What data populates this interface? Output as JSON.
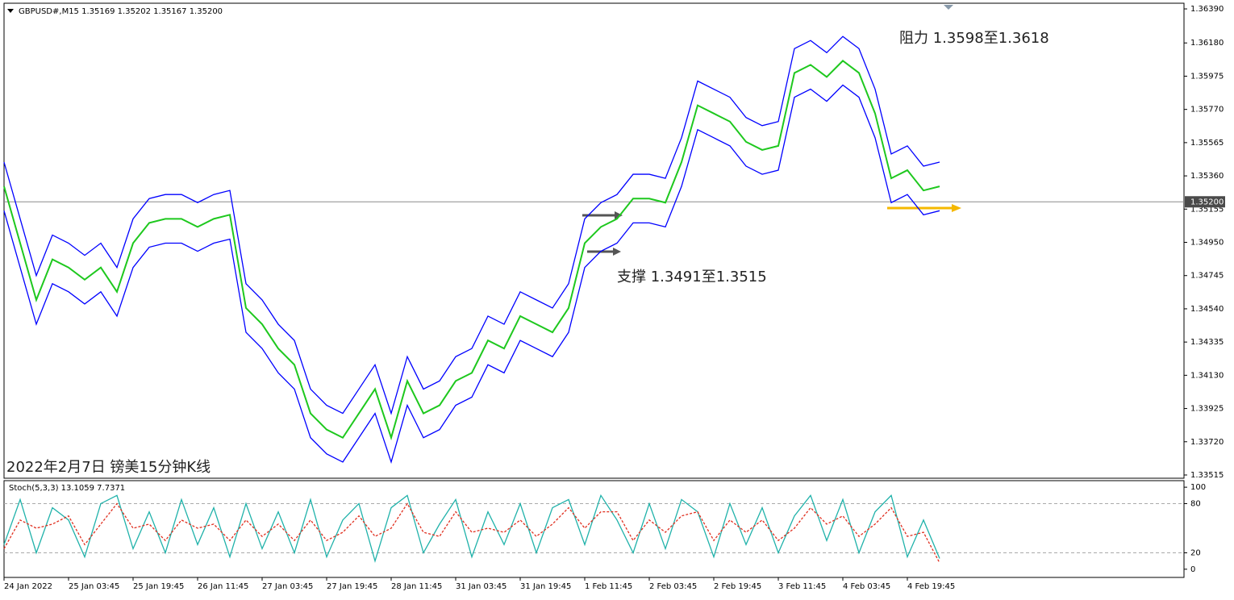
{
  "chart_data": [
    {
      "type": "line",
      "title": "GBPUSD#,M15  1.35169 1.35202 1.35167 1.35200",
      "annotations": [
        "阻力 1.3598至1.3618",
        "支撑 1.3491至1.3515",
        "2022年2月7日 镑美15分钟K线"
      ],
      "current_price": {
        "value": 1.352,
        "label": "1.35200"
      },
      "categories": [
        "24 Jan 2022",
        null,
        null,
        null,
        "25 Jan 03:45",
        null,
        null,
        null,
        "25 Jan 19:45",
        null,
        null,
        null,
        "26 Jan 11:45",
        null,
        null,
        null,
        "27 Jan 03:45",
        null,
        null,
        null,
        "27 Jan 19:45",
        null,
        null,
        null,
        "28 Jan 11:45",
        null,
        null,
        null,
        "31 Jan 03:45",
        null,
        null,
        null,
        "31 Jan 19:45",
        null,
        null,
        null,
        "1 Feb 11:45",
        null,
        null,
        null,
        "2 Feb 03:45",
        null,
        null,
        null,
        "2 Feb 19:45",
        null,
        null,
        null,
        "3 Feb 11:45",
        null,
        null,
        null,
        "4 Feb 03:45",
        null,
        null,
        null,
        "4 Feb 19:45",
        null,
        null
      ],
      "series": [
        {
          "color": "#1ec81e",
          "values": [
            1.35295,
            1.34945,
            1.34595,
            1.34845,
            1.34795,
            1.3472,
            1.34795,
            1.34645,
            1.34945,
            1.3507,
            1.35095,
            1.35095,
            1.35045,
            1.35095,
            1.3512,
            1.34545,
            1.34445,
            1.34295,
            1.34195,
            1.33895,
            1.33795,
            1.33745,
            1.33895,
            1.34045,
            1.33745,
            1.34095,
            1.33895,
            1.33945,
            1.34095,
            1.34145,
            1.34345,
            1.34295,
            1.34495,
            1.34445,
            1.34395,
            1.34545,
            1.34945,
            1.35045,
            1.35095,
            1.3522,
            1.3522,
            1.35195,
            1.35445,
            1.35795,
            1.35745,
            1.35695,
            1.3557,
            1.3552,
            1.35545,
            1.35995,
            1.36045,
            1.3597,
            1.3607,
            1.35995,
            1.35745,
            1.35345,
            1.35395,
            1.3527,
            1.35295
          ]
        },
        {
          "color": "#0000ff",
          "values": [
            1.35445,
            1.35095,
            1.34745,
            1.34995,
            1.34945,
            1.3487,
            1.34945,
            1.34795,
            1.35095,
            1.3522,
            1.35245,
            1.35245,
            1.35195,
            1.35245,
            1.3527,
            1.34695,
            1.34595,
            1.34445,
            1.34345,
            1.34045,
            1.33945,
            1.33895,
            1.34045,
            1.34195,
            1.33895,
            1.34245,
            1.34045,
            1.34095,
            1.34245,
            1.34295,
            1.34495,
            1.34445,
            1.34645,
            1.34595,
            1.34545,
            1.34695,
            1.35095,
            1.35195,
            1.35245,
            1.3537,
            1.3537,
            1.35345,
            1.35595,
            1.35945,
            1.35895,
            1.35845,
            1.3572,
            1.3567,
            1.35695,
            1.36145,
            1.36195,
            1.3612,
            1.3622,
            1.36145,
            1.35895,
            1.35495,
            1.35545,
            1.3542,
            1.35445
          ]
        },
        {
          "color": "#0000ff",
          "values": [
            1.35145,
            1.34795,
            1.34445,
            1.34695,
            1.34645,
            1.3457,
            1.34645,
            1.34495,
            1.34795,
            1.3492,
            1.34945,
            1.34945,
            1.34895,
            1.34945,
            1.3497,
            1.34395,
            1.34295,
            1.34145,
            1.34045,
            1.33745,
            1.33645,
            1.33595,
            1.33745,
            1.33895,
            1.33595,
            1.33945,
            1.33745,
            1.33795,
            1.33945,
            1.33995,
            1.34195,
            1.34145,
            1.34345,
            1.34295,
            1.34245,
            1.34395,
            1.34795,
            1.34895,
            1.34945,
            1.3507,
            1.3507,
            1.35045,
            1.35295,
            1.35645,
            1.35595,
            1.35545,
            1.3542,
            1.3537,
            1.35395,
            1.35845,
            1.35895,
            1.3582,
            1.3592,
            1.35845,
            1.35595,
            1.35195,
            1.35245,
            1.3512,
            1.35145
          ]
        }
      ],
      "ylim": [
        1.335,
        1.3642
      ],
      "yticks": [
        {
          "value": 1.3639,
          "label": "1.36390"
        },
        {
          "value": 1.3618,
          "label": "1.36180"
        },
        {
          "value": 1.35975,
          "label": "1.35975"
        },
        {
          "value": 1.3577,
          "label": "1.35770"
        },
        {
          "value": 1.35565,
          "label": "1.35565"
        },
        {
          "value": 1.3536,
          "label": "1.35360"
        },
        {
          "value": 1.35155,
          "label": "1.35155"
        },
        {
          "value": 1.3495,
          "label": "1.34950"
        },
        {
          "value": 1.34745,
          "label": "1.34745"
        },
        {
          "value": 1.3454,
          "label": "1.34540"
        },
        {
          "value": 1.34335,
          "label": "1.34335"
        },
        {
          "value": 1.3413,
          "label": "1.34130"
        },
        {
          "value": 1.33925,
          "label": "1.33925"
        },
        {
          "value": 1.3372,
          "label": "1.33720"
        },
        {
          "value": 1.33515,
          "label": "1.33515"
        }
      ]
    },
    {
      "type": "line",
      "title": "Stoch(5,3,3) 13.1059 7.7371",
      "series": [
        {
          "color": "#20b2aa",
          "values": [
            30,
            85,
            20,
            75,
            60,
            15,
            80,
            90,
            25,
            70,
            20,
            85,
            30,
            75,
            15,
            80,
            25,
            70,
            20,
            85,
            15,
            60,
            80,
            10,
            75,
            90,
            20,
            55,
            85,
            15,
            70,
            30,
            80,
            20,
            75,
            85,
            30,
            90,
            60,
            20,
            80,
            25,
            85,
            70,
            15,
            80,
            30,
            75,
            20,
            65,
            90,
            35,
            85,
            20,
            70,
            90,
            15,
            60,
            13.1059
          ]
        },
        {
          "color": "#e03020",
          "dashed": true,
          "values": [
            25,
            60,
            50,
            55,
            65,
            30,
            55,
            80,
            50,
            55,
            35,
            60,
            50,
            55,
            35,
            60,
            40,
            55,
            35,
            60,
            35,
            45,
            65,
            40,
            50,
            80,
            45,
            40,
            70,
            45,
            50,
            45,
            60,
            40,
            55,
            75,
            50,
            70,
            70,
            35,
            60,
            45,
            65,
            70,
            35,
            60,
            45,
            60,
            35,
            50,
            75,
            55,
            65,
            40,
            55,
            75,
            40,
            45,
            7.7371
          ]
        }
      ],
      "ylim": [
        -10,
        108
      ],
      "yticks": [
        0,
        20,
        80,
        100
      ],
      "levels": [
        20,
        80
      ]
    }
  ]
}
